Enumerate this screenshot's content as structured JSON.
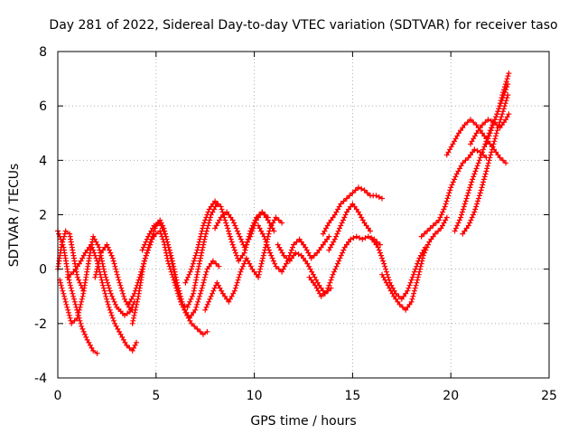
{
  "chart_data": {
    "type": "scatter",
    "title": "Day 281 of 2022, Sidereal Day-to-day VTEC variation (SDTVAR) for receiver taso",
    "xlabel": "GPS time / hours",
    "ylabel": "SDTVAR / TECUs",
    "xlim": [
      0,
      25
    ],
    "ylim": [
      -4,
      8
    ],
    "xticks": [
      0,
      5,
      10,
      15,
      20,
      25
    ],
    "yticks": [
      -4,
      -2,
      0,
      2,
      4,
      6,
      8
    ],
    "xtick_labels": [
      "0",
      "5",
      "10",
      "15",
      "20",
      "25"
    ],
    "ytick_labels": [
      "-4",
      "-2",
      "0",
      "2",
      "4",
      "6",
      "8"
    ],
    "grid": true,
    "marker": "+",
    "color": "#ff0000",
    "series": [
      {
        "name": "track-1",
        "x": [
          0.0,
          0.3,
          0.6,
          0.9,
          1.2,
          1.5,
          1.8,
          2.0
        ],
        "y": [
          1.4,
          0.8,
          -0.5,
          -1.3,
          -2.1,
          -2.6,
          -3.0,
          -3.1
        ]
      },
      {
        "name": "track-2",
        "x": [
          0.0,
          0.2,
          0.4,
          0.6,
          0.8,
          1.0,
          1.3
        ],
        "y": [
          0.0,
          0.9,
          1.4,
          1.3,
          0.5,
          -0.3,
          -0.8
        ]
      },
      {
        "name": "track-3",
        "x": [
          0.1,
          0.4,
          0.7,
          1.0,
          1.3,
          1.6,
          1.8,
          2.1,
          2.4,
          2.7,
          3.0,
          3.4,
          3.8
        ],
        "y": [
          -0.4,
          -1.2,
          -2.0,
          -1.8,
          -0.9,
          0.4,
          1.2,
          0.8,
          -0.2,
          -0.9,
          -1.4,
          -1.7,
          -1.5
        ]
      },
      {
        "name": "track-4",
        "x": [
          0.5,
          0.8,
          1.1,
          1.4,
          1.7,
          2.0,
          2.3,
          2.6,
          2.9,
          3.2,
          3.5,
          3.8,
          4.0
        ],
        "y": [
          -0.3,
          -0.1,
          0.2,
          0.6,
          0.9,
          0.3,
          -0.6,
          -1.4,
          -2.0,
          -2.4,
          -2.8,
          -3.0,
          -2.7
        ]
      },
      {
        "name": "track-5",
        "x": [
          1.9,
          2.2,
          2.5,
          2.8,
          3.1,
          3.4,
          3.7,
          3.9
        ],
        "y": [
          -0.3,
          0.6,
          0.9,
          0.4,
          -0.4,
          -1.1,
          -1.5,
          -1.2
        ]
      },
      {
        "name": "track-6",
        "x": [
          3.6,
          3.9,
          4.2,
          4.5,
          4.8,
          5.0,
          5.2,
          5.4,
          5.6,
          5.9,
          6.2,
          6.5,
          6.8,
          7.1,
          7.4,
          7.6
        ],
        "y": [
          -1.3,
          -0.9,
          -0.2,
          0.5,
          1.1,
          1.3,
          1.4,
          1.0,
          0.3,
          -0.4,
          -1.1,
          -1.6,
          -2.0,
          -2.2,
          -2.4,
          -2.3
        ]
      },
      {
        "name": "track-7",
        "x": [
          3.8,
          4.1,
          4.4,
          4.7,
          5.0,
          5.2,
          5.4,
          5.7,
          6.0,
          6.3,
          6.6,
          6.9,
          7.2,
          7.5,
          7.8,
          8.1
        ],
        "y": [
          -2.0,
          -1.0,
          0.3,
          1.0,
          1.6,
          1.8,
          1.5,
          0.6,
          -0.4,
          -1.3,
          -1.4,
          -0.9,
          0.2,
          1.2,
          2.0,
          2.4
        ]
      },
      {
        "name": "track-8",
        "x": [
          4.3,
          4.6,
          4.9,
          5.2,
          5.5,
          5.8,
          6.1,
          6.4,
          6.7,
          7.0,
          7.3,
          7.6,
          7.9,
          8.2
        ],
        "y": [
          0.7,
          1.2,
          1.6,
          1.7,
          1.2,
          0.4,
          -0.6,
          -1.4,
          -1.8,
          -1.5,
          -0.8,
          0.0,
          0.3,
          0.1
        ]
      },
      {
        "name": "track-9",
        "x": [
          6.5,
          6.8,
          7.1,
          7.4,
          7.7,
          8.0,
          8.3,
          8.6,
          8.9,
          9.2,
          9.5,
          9.8,
          10.1,
          10.4,
          10.7,
          11.0
        ],
        "y": [
          -0.5,
          0.0,
          0.7,
          1.6,
          2.2,
          2.5,
          2.3,
          1.6,
          0.9,
          0.3,
          0.6,
          1.4,
          1.9,
          2.1,
          1.8,
          1.4
        ]
      },
      {
        "name": "track-10",
        "x": [
          7.5,
          7.8,
          8.1,
          8.4,
          8.7,
          9.0,
          9.3,
          9.6,
          9.9,
          10.2,
          10.5,
          10.8,
          11.1,
          11.4
        ],
        "y": [
          -1.5,
          -1.0,
          -0.5,
          -0.9,
          -1.2,
          -0.8,
          -0.1,
          0.4,
          0.0,
          -0.3,
          0.6,
          1.5,
          1.9,
          1.7
        ]
      },
      {
        "name": "track-11",
        "x": [
          8.0,
          8.3,
          8.6,
          8.9,
          9.2,
          9.5,
          9.8,
          10.1,
          10.4,
          10.7
        ],
        "y": [
          1.5,
          1.9,
          2.1,
          1.8,
          1.3,
          0.8,
          1.2,
          1.8,
          2.1,
          1.9
        ]
      },
      {
        "name": "track-12",
        "x": [
          10.2,
          10.5,
          10.8,
          11.1,
          11.4,
          11.7,
          12.0,
          12.3,
          12.6,
          12.9,
          13.2,
          13.5,
          13.8
        ],
        "y": [
          1.6,
          1.2,
          0.6,
          0.1,
          -0.1,
          0.3,
          0.9,
          1.1,
          0.8,
          0.4,
          0.6,
          0.9,
          1.2
        ]
      },
      {
        "name": "track-13",
        "x": [
          11.2,
          11.5,
          11.8,
          12.1,
          12.4,
          12.7,
          13.0,
          13.3,
          13.6,
          13.9
        ],
        "y": [
          0.9,
          0.5,
          0.3,
          0.6,
          0.5,
          0.2,
          -0.2,
          -0.6,
          -0.9,
          -0.7
        ]
      },
      {
        "name": "track-14",
        "x": [
          12.8,
          13.1,
          13.4,
          13.7,
          14.0,
          14.3,
          14.6,
          14.9,
          15.2,
          15.5,
          15.8,
          16.1,
          16.4
        ],
        "y": [
          -0.3,
          -0.6,
          -1.0,
          -0.8,
          -0.2,
          0.3,
          0.8,
          1.1,
          1.2,
          1.1,
          1.2,
          1.1,
          0.9
        ]
      },
      {
        "name": "track-15",
        "x": [
          13.5,
          13.8,
          14.1,
          14.4,
          14.7,
          15.0,
          15.3,
          15.6,
          15.9,
          16.2,
          16.5
        ],
        "y": [
          1.3,
          1.7,
          2.0,
          2.4,
          2.6,
          2.8,
          3.0,
          2.9,
          2.7,
          2.7,
          2.6
        ]
      },
      {
        "name": "track-16",
        "x": [
          13.8,
          14.1,
          14.4,
          14.7,
          15.0,
          15.3,
          15.6,
          15.9
        ],
        "y": [
          0.7,
          1.1,
          1.6,
          2.1,
          2.4,
          2.1,
          1.7,
          1.4
        ]
      },
      {
        "name": "track-17",
        "x": [
          16.0,
          16.3,
          16.6,
          16.9,
          17.2,
          17.5,
          17.8,
          18.1,
          18.4,
          18.7
        ],
        "y": [
          1.1,
          0.8,
          0.2,
          -0.5,
          -0.9,
          -1.1,
          -0.8,
          -0.2,
          0.4,
          0.8
        ]
      },
      {
        "name": "track-18",
        "x": [
          16.5,
          16.8,
          17.1,
          17.4,
          17.7,
          18.0,
          18.3,
          18.6,
          18.9,
          19.2,
          19.5,
          19.8
        ],
        "y": [
          -0.2,
          -0.6,
          -1.0,
          -1.3,
          -1.5,
          -1.2,
          -0.4,
          0.5,
          1.0,
          1.3,
          1.5,
          1.9
        ]
      },
      {
        "name": "track-19",
        "x": [
          18.5,
          18.8,
          19.1,
          19.4,
          19.7,
          20.0,
          20.3,
          20.6,
          20.9,
          21.2,
          21.5,
          21.8
        ],
        "y": [
          1.2,
          1.4,
          1.6,
          1.8,
          2.3,
          3.0,
          3.5,
          3.9,
          4.1,
          4.4,
          4.3,
          4.1
        ]
      },
      {
        "name": "track-20",
        "x": [
          19.8,
          20.1,
          20.4,
          20.7,
          21.0,
          21.3,
          21.6,
          21.9,
          22.2,
          22.5,
          22.8
        ],
        "y": [
          4.2,
          4.6,
          5.0,
          5.3,
          5.5,
          5.3,
          5.0,
          4.7,
          4.4,
          4.1,
          3.9
        ]
      },
      {
        "name": "track-21",
        "x": [
          20.2,
          20.5,
          20.8,
          21.1,
          21.4,
          21.7,
          22.0,
          22.3,
          22.6,
          22.9
        ],
        "y": [
          1.4,
          1.9,
          2.6,
          3.3,
          3.9,
          4.5,
          5.1,
          5.6,
          6.2,
          6.8
        ]
      },
      {
        "name": "track-22",
        "x": [
          20.6,
          20.9,
          21.2,
          21.5,
          21.8,
          22.1,
          22.4,
          22.7,
          22.9
        ],
        "y": [
          1.3,
          1.6,
          2.1,
          2.8,
          3.6,
          4.4,
          5.2,
          5.9,
          6.4
        ]
      },
      {
        "name": "track-23",
        "x": [
          21.0,
          21.3,
          21.6,
          21.9,
          22.2,
          22.5,
          22.8,
          22.95
        ],
        "y": [
          4.6,
          5.0,
          5.3,
          5.5,
          5.4,
          5.2,
          5.5,
          5.7
        ]
      },
      {
        "name": "track-24",
        "x": [
          21.8,
          22.1,
          22.4,
          22.7,
          22.95
        ],
        "y": [
          4.6,
          5.2,
          5.8,
          6.6,
          7.2
        ]
      }
    ]
  }
}
